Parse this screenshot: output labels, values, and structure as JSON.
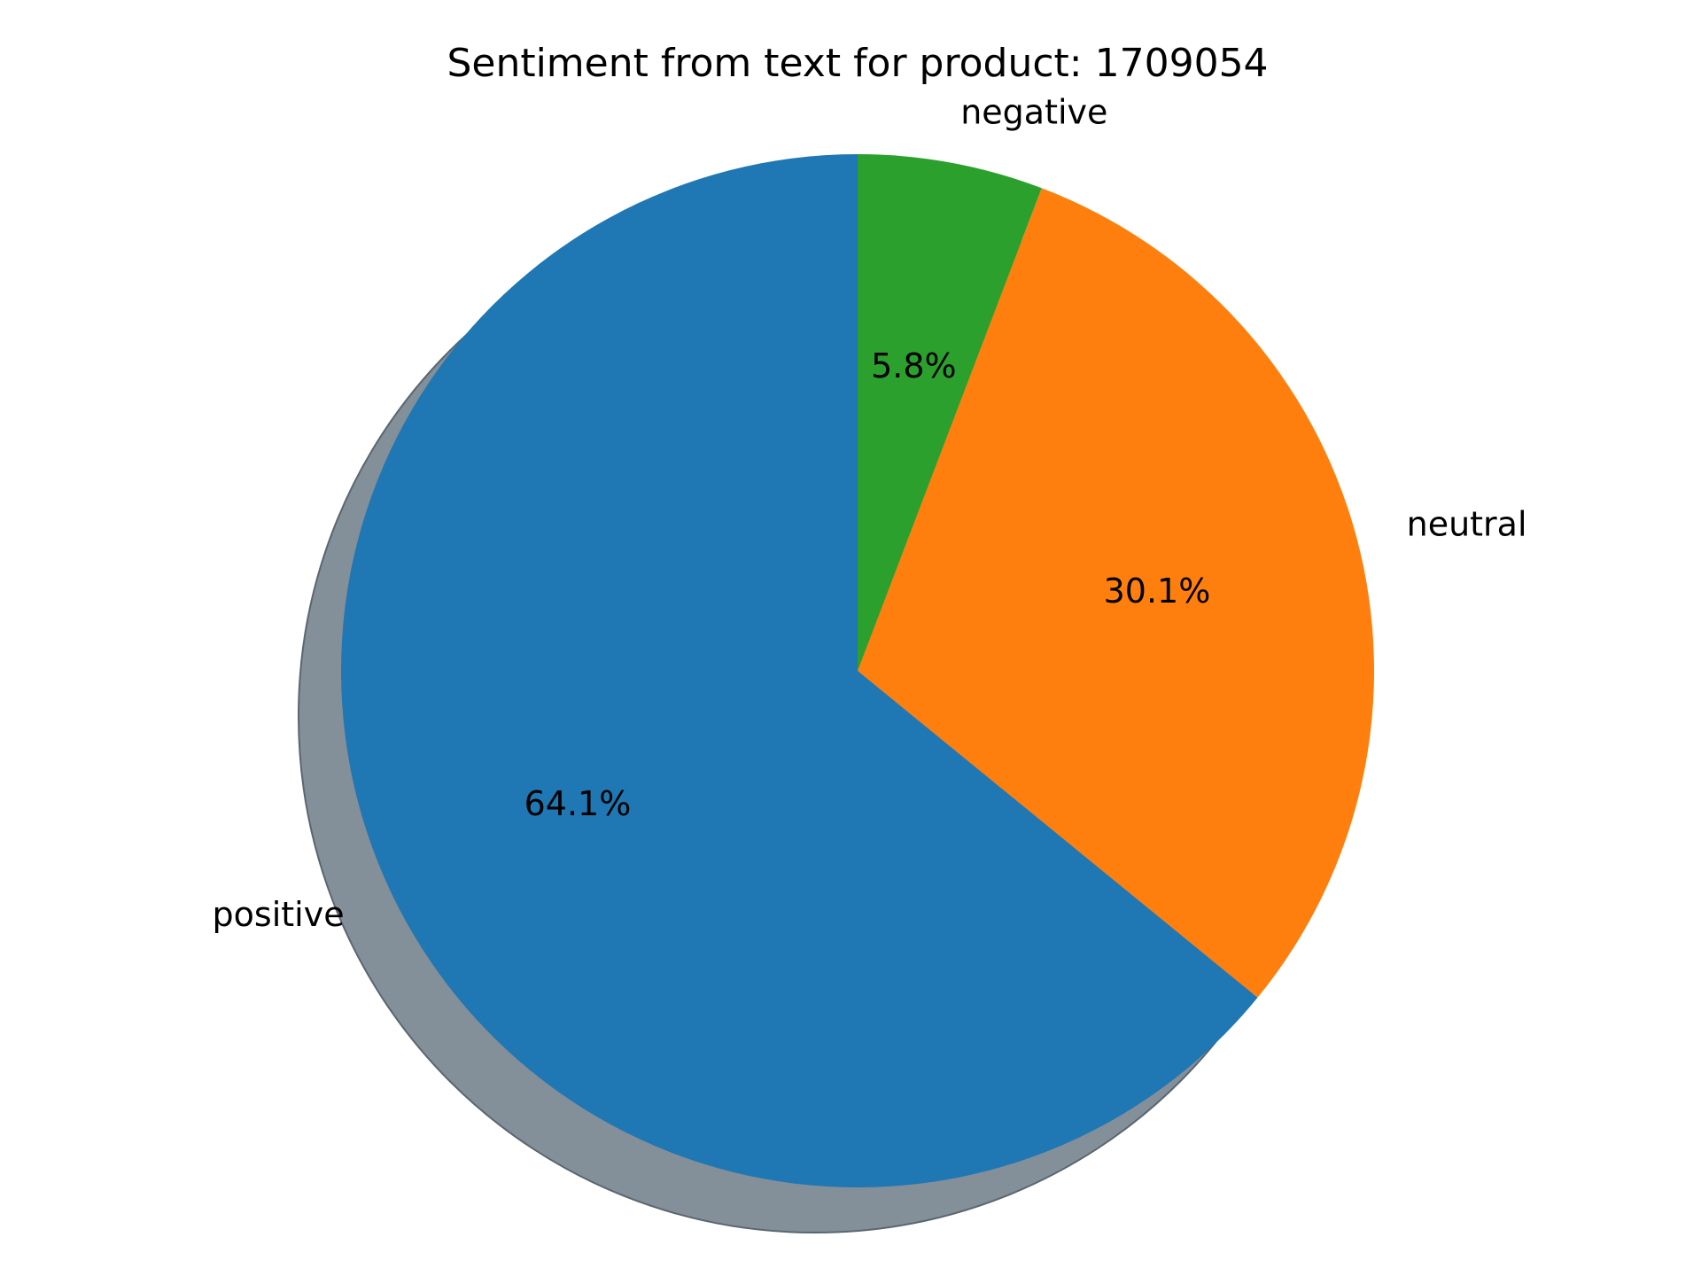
{
  "chart_data": {
    "type": "pie",
    "title": "Sentiment from text for product: 1709054",
    "slices": [
      {
        "label": "positive",
        "value": 64.1,
        "pct_text": "64.1%",
        "color": "#1f77b4"
      },
      {
        "label": "neutral",
        "value": 30.1,
        "pct_text": "30.1%",
        "color": "#ff7f0e"
      },
      {
        "label": "negative",
        "value": 5.8,
        "pct_text": "5.8%",
        "color": "#2ca02c"
      }
    ],
    "start_angle_deg": 90,
    "direction": "counterclockwise",
    "shadow": true,
    "shadow_color": "#838f99",
    "legend": "none"
  }
}
